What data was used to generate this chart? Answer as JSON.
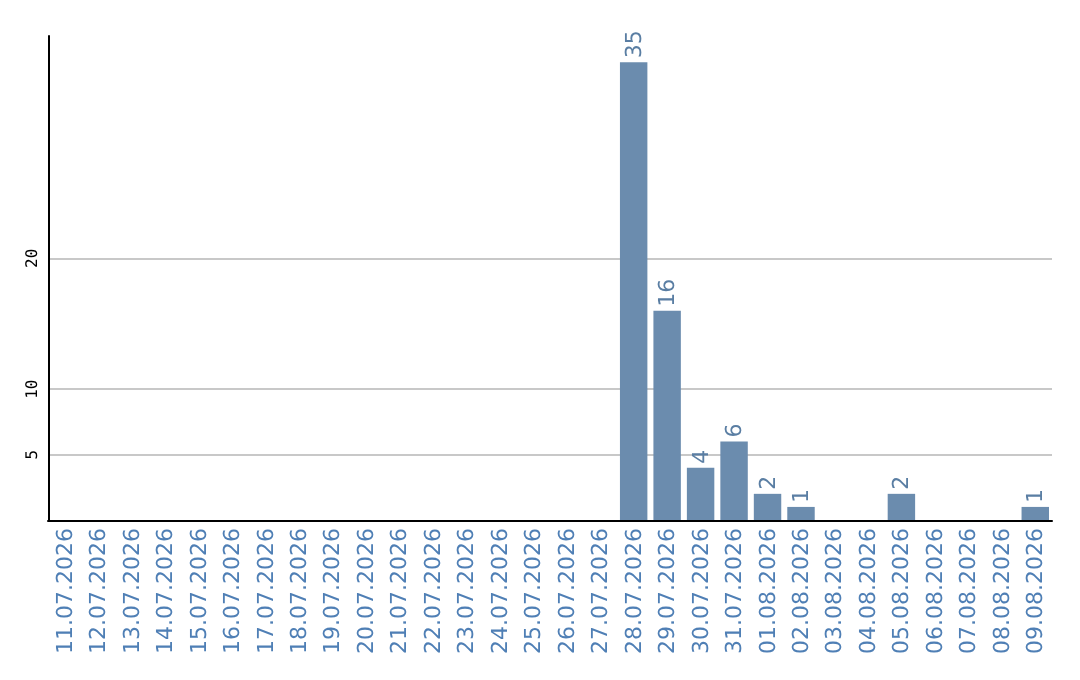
{
  "chart_data": {
    "type": "bar",
    "categories": [
      "11.07.2026",
      "12.07.2026",
      "13.07.2026",
      "14.07.2026",
      "15.07.2026",
      "16.07.2026",
      "17.07.2026",
      "18.07.2026",
      "19.07.2026",
      "20.07.2026",
      "21.07.2026",
      "22.07.2026",
      "23.07.2026",
      "24.07.2026",
      "25.07.2026",
      "26.07.2026",
      "27.07.2026",
      "28.07.2026",
      "29.07.2026",
      "30.07.2026",
      "31.07.2026",
      "01.08.2026",
      "02.08.2026",
      "03.08.2026",
      "04.08.2026",
      "05.08.2026",
      "06.08.2026",
      "07.08.2026",
      "08.08.2026",
      "09.08.2026"
    ],
    "values": [
      0,
      0,
      0,
      0,
      0,
      0,
      0,
      0,
      0,
      0,
      0,
      0,
      0,
      0,
      0,
      0,
      0,
      35,
      16,
      4,
      6,
      2,
      1,
      0,
      0,
      2,
      0,
      0,
      0,
      1
    ],
    "value_labels": [
      null,
      null,
      null,
      null,
      null,
      null,
      null,
      null,
      null,
      null,
      null,
      null,
      null,
      null,
      null,
      null,
      null,
      "35",
      "16",
      "4",
      "6",
      "2",
      "1",
      null,
      null,
      "2",
      null,
      null,
      null,
      "1"
    ],
    "color": "#6b8cae",
    "ylim": [
      0,
      37
    ],
    "yticks": [
      5,
      10,
      20
    ],
    "grid": "y"
  }
}
